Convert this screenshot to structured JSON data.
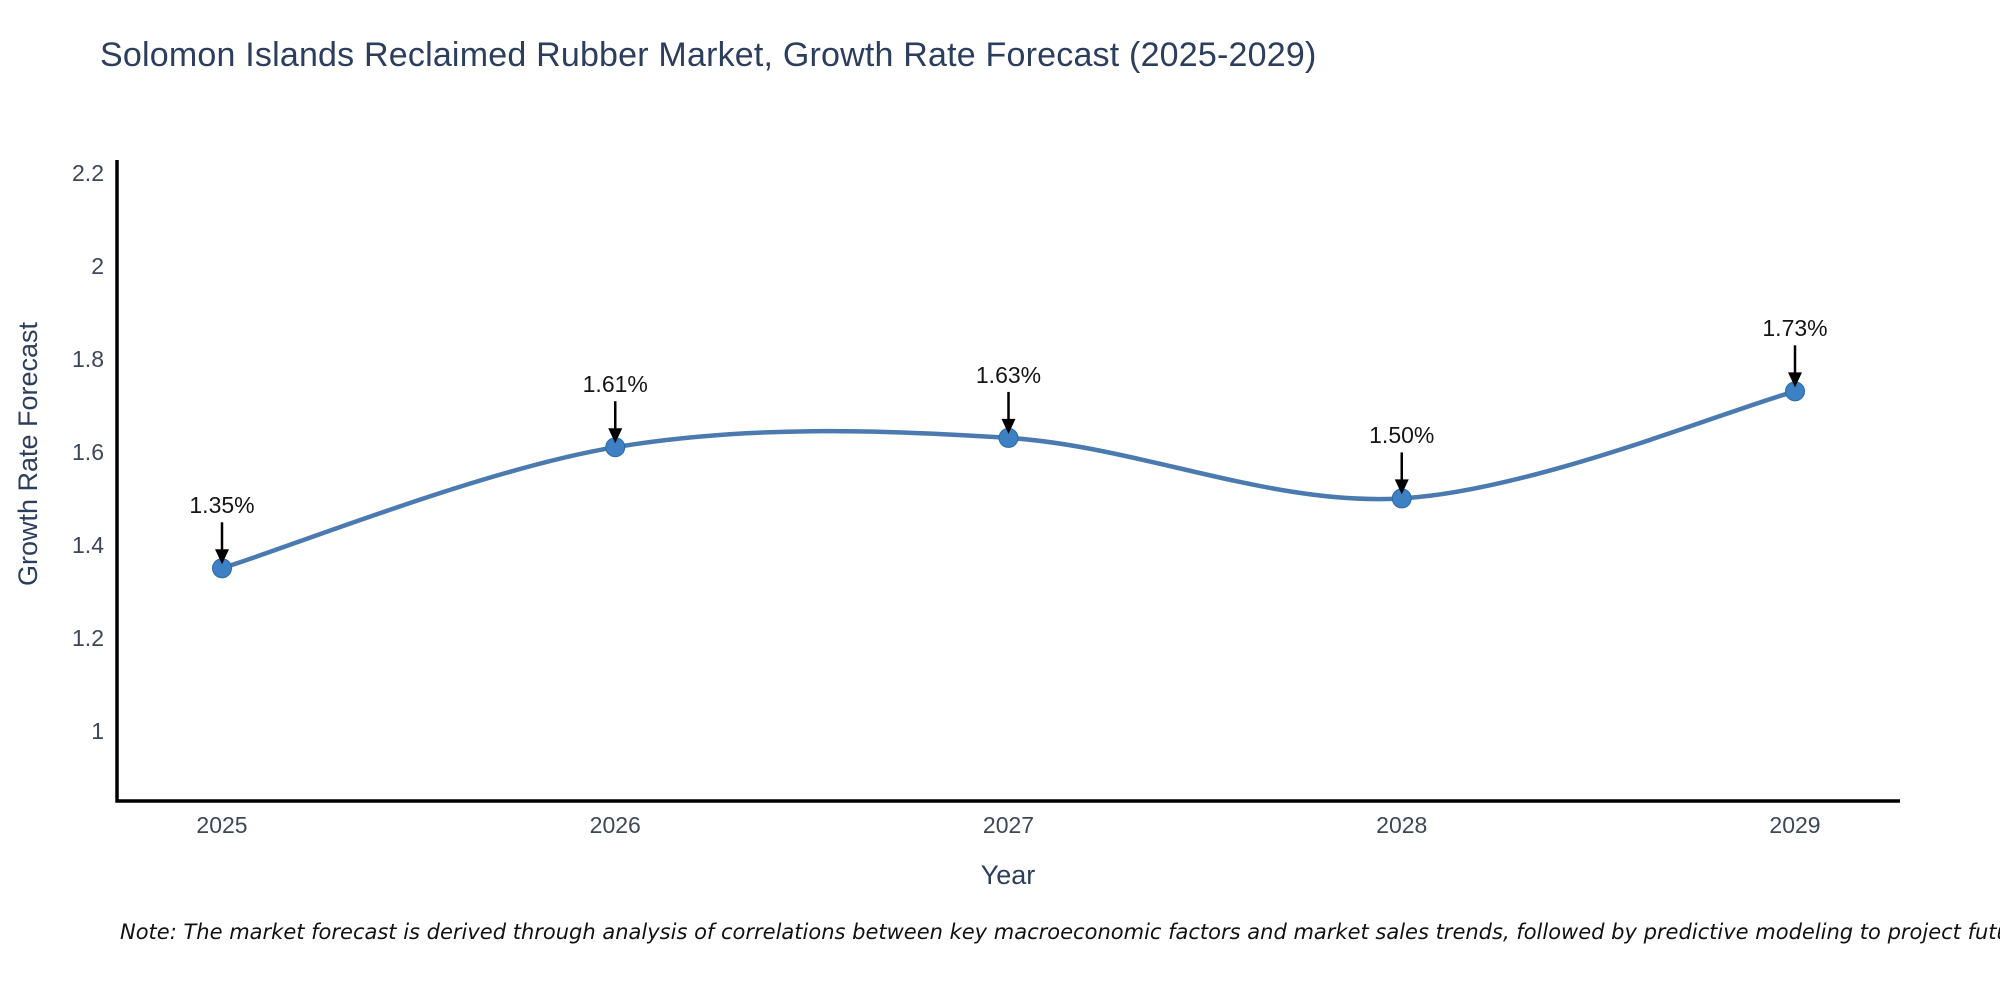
{
  "title": "Solomon Islands Reclaimed Rubber Market, Growth Rate Forecast (2025-2029)",
  "axes": {
    "x_title": "Year",
    "y_title": "Growth Rate Forecast"
  },
  "note": "Note: The market forecast is derived through analysis of correlations between key macroeconomic factors and market sales trends, followed by predictive modeling to project future sales",
  "colors": {
    "line": "#4a7ab0",
    "marker_fill": "#3d80c4",
    "marker_edge": "#2a69a5",
    "arrow": "#000000",
    "axis_line": "#000000",
    "title_text": "#2c3e5d",
    "tick_text": "#3d4758",
    "annotation_text": "#151515"
  },
  "chart_data": {
    "type": "line",
    "line_shape": "spline",
    "title": "Solomon Islands Reclaimed Rubber Market, Growth Rate Forecast (2025-2029)",
    "xlabel": "Year",
    "ylabel": "Growth Rate Forecast",
    "categories": [
      "2025",
      "2026",
      "2027",
      "2028",
      "2029"
    ],
    "series": [
      {
        "name": "Growth Rate Forecast",
        "values": [
          1.35,
          1.61,
          1.63,
          1.5,
          1.73
        ]
      }
    ],
    "point_labels": [
      "1.35%",
      "1.61%",
      "1.63%",
      "1.50%",
      "1.73%"
    ],
    "ylim": [
      0.85,
      2.227
    ],
    "y_tick_values": [
      1,
      1.2,
      1.4,
      1.6,
      1.8,
      2,
      2.2
    ],
    "y_tick_labels": [
      "1",
      "1.2",
      "1.4",
      "1.6",
      "1.8",
      "2",
      "2.2"
    ],
    "grid": false,
    "legend_position": "none",
    "markers": true,
    "annotations": "value labels with down arrows above each point"
  }
}
